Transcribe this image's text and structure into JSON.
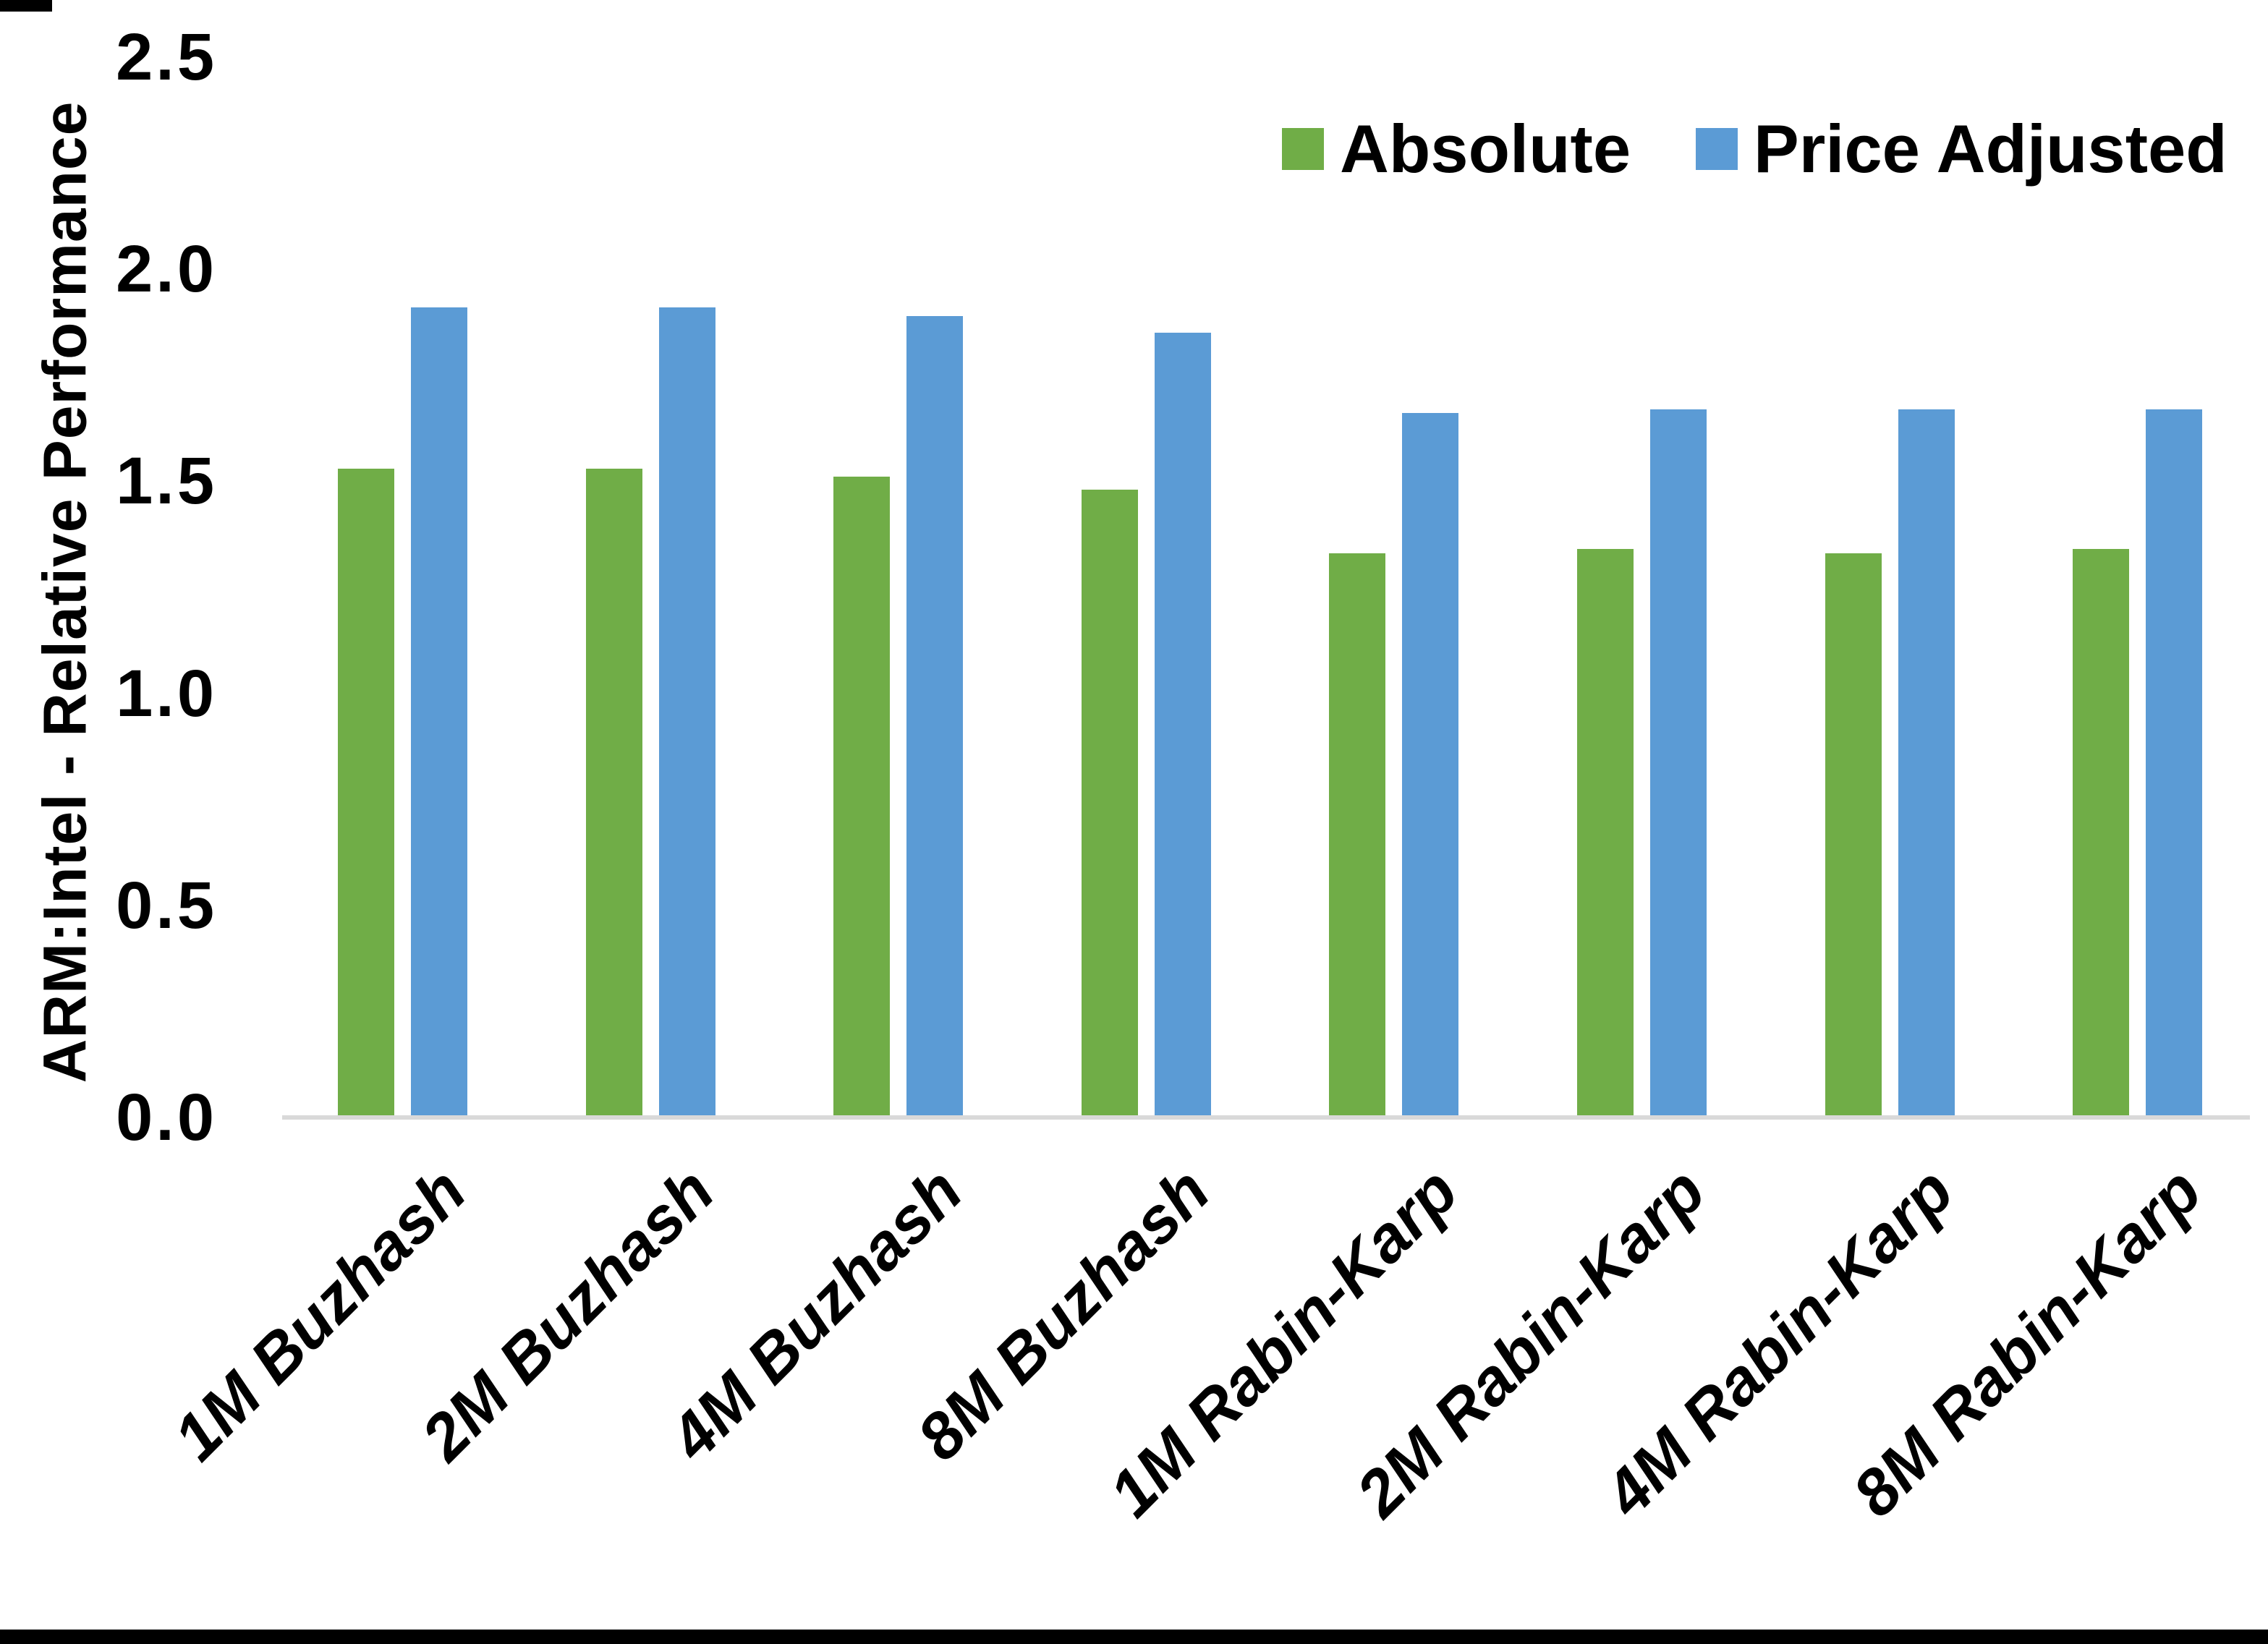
{
  "chart_data": {
    "type": "bar",
    "title": "",
    "xlabel": "",
    "ylabel": "ARM:Intel - Relative Performance",
    "ylim": [
      0,
      2.5
    ],
    "ytick_step": 0.5,
    "ytick_labels": [
      "0.0",
      "0.5",
      "1.0",
      "1.5",
      "2.0",
      "2.5"
    ],
    "grid": false,
    "legend_position": "top-right",
    "categories": [
      "1M Buzhash",
      "2M Buzhash",
      "4M Buzhash",
      "8M Buzhash",
      "1M Rabin-Karp",
      "2M Rabin-Karp",
      "4M Rabin-Karp",
      "8M Rabin-Karp"
    ],
    "series": [
      {
        "name": "Absolute",
        "color": "#70AD47",
        "values": [
          1.53,
          1.53,
          1.51,
          1.48,
          1.33,
          1.34,
          1.33,
          1.34
        ]
      },
      {
        "name": "Price Adjusted",
        "color": "#5B9BD5",
        "values": [
          1.91,
          1.91,
          1.89,
          1.85,
          1.66,
          1.67,
          1.67,
          1.67
        ]
      }
    ]
  },
  "colors": {
    "axis_line": "#D9D9D9",
    "text": "#000000",
    "frame_edge": "#000000"
  },
  "legend": {
    "items": [
      {
        "label": "Absolute",
        "color": "#70AD47"
      },
      {
        "label": "Price Adjusted",
        "color": "#5B9BD5"
      }
    ]
  }
}
